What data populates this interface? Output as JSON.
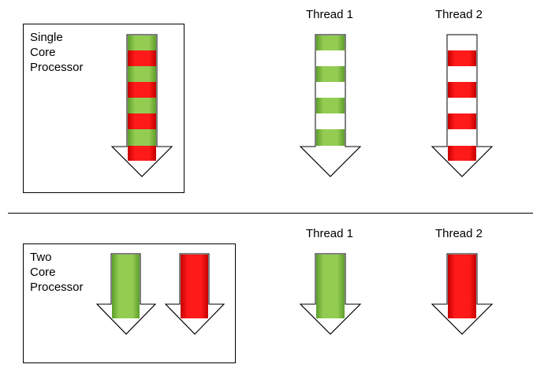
{
  "sections": [
    {
      "box_label": "Single\nCore\nProcessor",
      "thread_1_title": "Thread 1",
      "thread_2_title": "Thread 2"
    },
    {
      "box_label": "Two\nCore\nProcessor",
      "thread_1_title": "Thread 1",
      "thread_2_title": "Thread 2"
    }
  ],
  "colors": {
    "thread_1": "#8bc34a",
    "thread_2": "#ee1c1c",
    "outline": "#000000"
  }
}
